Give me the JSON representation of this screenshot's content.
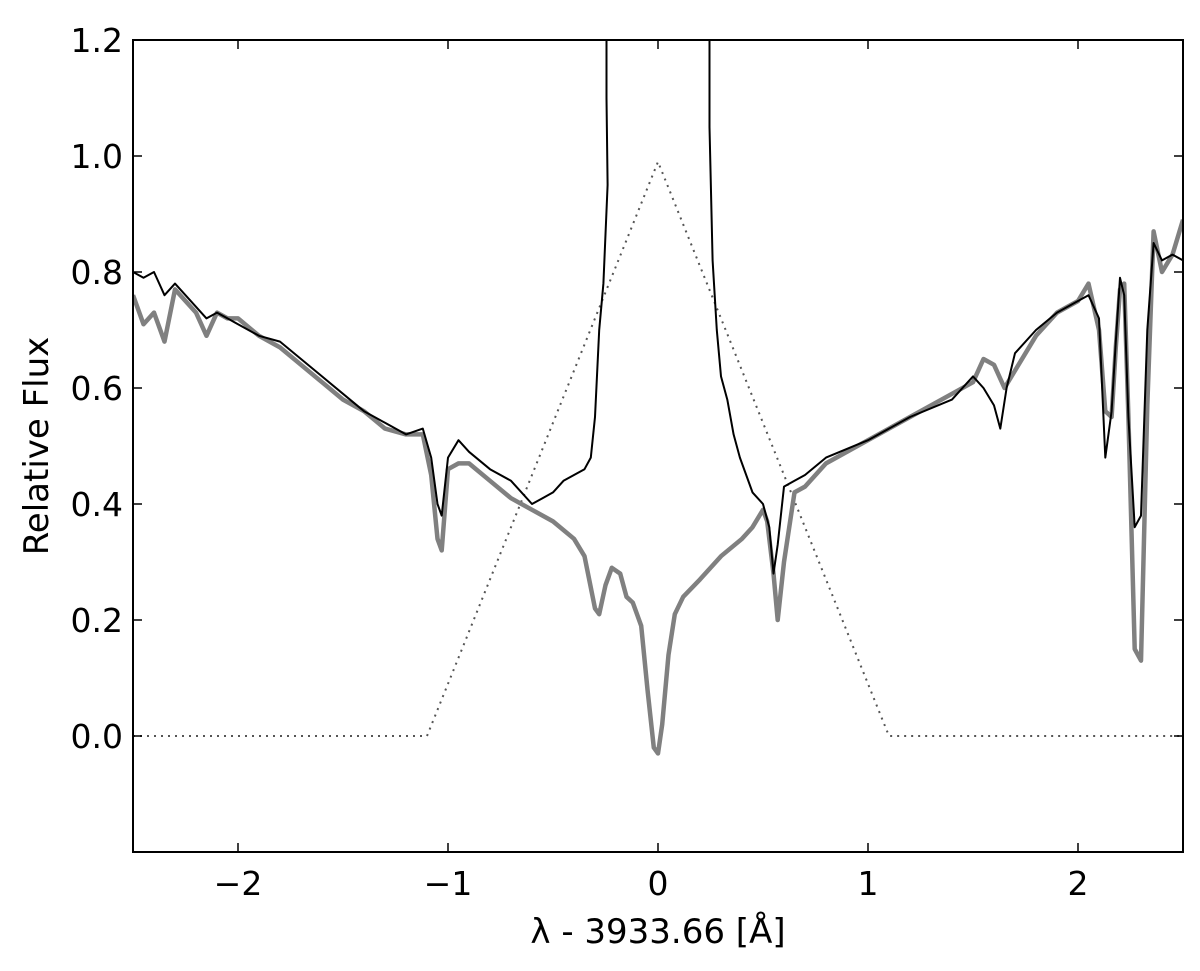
{
  "chart_data": {
    "type": "line",
    "xlabel": "λ - 3933.66 [Å]",
    "ylabel": "Relative Flux",
    "xlim": [
      -2.5,
      2.5
    ],
    "ylim": [
      -0.2,
      1.2
    ],
    "xticks": [
      {
        "value": -2,
        "label": "−2"
      },
      {
        "value": -1,
        "label": "−1"
      },
      {
        "value": 0,
        "label": "0"
      },
      {
        "value": 1,
        "label": "1"
      },
      {
        "value": 2,
        "label": "2"
      }
    ],
    "yticks": [
      {
        "value": 0.0,
        "label": "0.0"
      },
      {
        "value": 0.2,
        "label": "0.2"
      },
      {
        "value": 0.4,
        "label": "0.4"
      },
      {
        "value": 0.6,
        "label": "0.6"
      },
      {
        "value": 0.8,
        "label": "0.8"
      },
      {
        "value": 1.0,
        "label": "1.0"
      },
      {
        "value": 1.2,
        "label": "1.2"
      }
    ],
    "grid": false,
    "legend": "none",
    "series": [
      {
        "style": "dotted",
        "color": "#555555",
        "x": [
          -2.5,
          -1.1,
          0.0,
          1.1,
          2.5
        ],
        "y": [
          0.0,
          0.0,
          0.99,
          0.0,
          0.0
        ]
      },
      {
        "style": "thick",
        "color": "#808080",
        "x": [
          -2.5,
          -2.45,
          -2.4,
          -2.35,
          -2.3,
          -2.25,
          -2.2,
          -2.15,
          -2.1,
          -2.05,
          -2.0,
          -1.9,
          -1.8,
          -1.7,
          -1.6,
          -1.5,
          -1.4,
          -1.3,
          -1.2,
          -1.12,
          -1.08,
          -1.05,
          -1.03,
          -1.0,
          -0.95,
          -0.9,
          -0.8,
          -0.7,
          -0.6,
          -0.5,
          -0.4,
          -0.35,
          -0.3,
          -0.28,
          -0.25,
          -0.22,
          -0.18,
          -0.15,
          -0.12,
          -0.08,
          -0.05,
          -0.02,
          0.0,
          0.02,
          0.05,
          0.08,
          0.12,
          0.2,
          0.3,
          0.4,
          0.45,
          0.5,
          0.52,
          0.55,
          0.57,
          0.6,
          0.65,
          0.7,
          0.8,
          1.0,
          1.2,
          1.4,
          1.5,
          1.55,
          1.6,
          1.65,
          1.7,
          1.8,
          1.9,
          2.0,
          2.05,
          2.1,
          2.13,
          2.16,
          2.18,
          2.2,
          2.22,
          2.24,
          2.27,
          2.3,
          2.33,
          2.36,
          2.4,
          2.45,
          2.5
        ],
        "y": [
          0.76,
          0.71,
          0.73,
          0.68,
          0.77,
          0.75,
          0.73,
          0.69,
          0.73,
          0.72,
          0.72,
          0.69,
          0.67,
          0.64,
          0.61,
          0.58,
          0.56,
          0.53,
          0.52,
          0.52,
          0.45,
          0.34,
          0.32,
          0.46,
          0.47,
          0.47,
          0.44,
          0.41,
          0.39,
          0.37,
          0.34,
          0.31,
          0.22,
          0.21,
          0.26,
          0.29,
          0.28,
          0.24,
          0.23,
          0.19,
          0.08,
          -0.02,
          -0.03,
          0.02,
          0.14,
          0.21,
          0.24,
          0.27,
          0.31,
          0.34,
          0.36,
          0.39,
          0.37,
          0.28,
          0.2,
          0.3,
          0.42,
          0.43,
          0.47,
          0.51,
          0.55,
          0.59,
          0.61,
          0.65,
          0.64,
          0.6,
          0.63,
          0.69,
          0.73,
          0.75,
          0.78,
          0.7,
          0.56,
          0.55,
          0.67,
          0.77,
          0.78,
          0.55,
          0.15,
          0.13,
          0.57,
          0.87,
          0.8,
          0.83,
          0.89
        ]
      },
      {
        "style": "thin",
        "color": "#000000",
        "x": [
          -2.5,
          -2.45,
          -2.4,
          -2.35,
          -2.3,
          -2.25,
          -2.2,
          -2.15,
          -2.1,
          -2.05,
          -2.0,
          -1.9,
          -1.8,
          -1.7,
          -1.6,
          -1.5,
          -1.4,
          -1.3,
          -1.2,
          -1.12,
          -1.08,
          -1.05,
          -1.03,
          -1.0,
          -0.95,
          -0.9,
          -0.8,
          -0.7,
          -0.6,
          -0.55,
          -0.5,
          -0.45,
          -0.4,
          -0.35,
          -0.32,
          -0.3,
          -0.28,
          -0.26,
          -0.24,
          -0.245,
          -0.245,
          0.245,
          0.245,
          0.26,
          0.28,
          0.3,
          0.33,
          0.36,
          0.39,
          0.42,
          0.45,
          0.5,
          0.53,
          0.55,
          0.57,
          0.6,
          0.65,
          0.7,
          0.8,
          1.0,
          1.2,
          1.4,
          1.5,
          1.55,
          1.6,
          1.63,
          1.66,
          1.7,
          1.8,
          1.9,
          2.0,
          2.05,
          2.1,
          2.13,
          2.16,
          2.18,
          2.2,
          2.22,
          2.24,
          2.27,
          2.3,
          2.33,
          2.36,
          2.4,
          2.45,
          2.5
        ],
        "y": [
          0.8,
          0.79,
          0.8,
          0.76,
          0.78,
          0.76,
          0.74,
          0.72,
          0.73,
          0.72,
          0.71,
          0.69,
          0.68,
          0.65,
          0.62,
          0.59,
          0.56,
          0.54,
          0.52,
          0.53,
          0.48,
          0.4,
          0.38,
          0.48,
          0.51,
          0.49,
          0.46,
          0.44,
          0.4,
          0.41,
          0.42,
          0.44,
          0.45,
          0.46,
          0.48,
          0.55,
          0.7,
          0.78,
          0.95,
          1.1,
          1.2,
          1.2,
          1.05,
          0.82,
          0.7,
          0.62,
          0.58,
          0.52,
          0.48,
          0.45,
          0.42,
          0.4,
          0.36,
          0.28,
          0.33,
          0.43,
          0.44,
          0.45,
          0.48,
          0.51,
          0.55,
          0.58,
          0.62,
          0.6,
          0.57,
          0.53,
          0.6,
          0.66,
          0.7,
          0.73,
          0.75,
          0.76,
          0.72,
          0.48,
          0.56,
          0.68,
          0.79,
          0.76,
          0.55,
          0.36,
          0.38,
          0.7,
          0.85,
          0.82,
          0.83,
          0.82
        ]
      }
    ]
  }
}
